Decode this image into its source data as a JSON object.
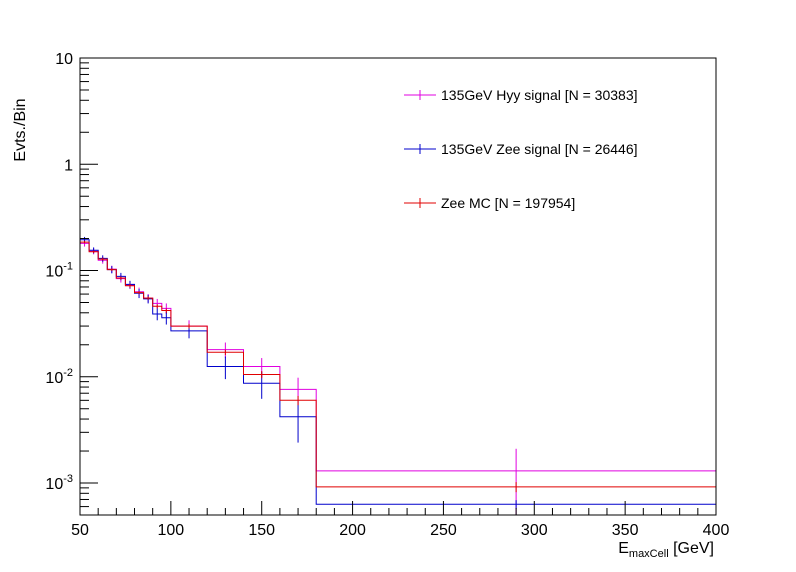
{
  "chart_data": {
    "type": "line",
    "ylabel": "Evts./Bin",
    "xlabel": {
      "main": "E",
      "sub": "maxCell",
      "unit": " [GeV]"
    },
    "xlim": [
      50,
      400
    ],
    "ylim": [
      0.0005,
      10
    ],
    "yscale": "log",
    "x_ticks": [
      "50",
      "100",
      "150",
      "200",
      "250",
      "300",
      "350",
      "400"
    ],
    "y_ticks": [
      {
        "base": "10",
        "exp": "-3",
        "value": 0.001
      },
      {
        "base": "10",
        "exp": "-2",
        "value": 0.01
      },
      {
        "base": "10",
        "exp": "-1",
        "value": 0.1
      },
      {
        "base": "1",
        "exp": "",
        "value": 1
      },
      {
        "base": "10",
        "exp": "",
        "value": 10
      }
    ],
    "legend_position": "top-right",
    "bin_edges": [
      50,
      55,
      60,
      65,
      70,
      75,
      80,
      85,
      90,
      95,
      100,
      120,
      140,
      160,
      180,
      400
    ],
    "series": [
      {
        "name": "135GeV Hyy signal [N = 30383]",
        "color": "#e000e0",
        "values": [
          0.18,
          0.152,
          0.125,
          0.103,
          0.084,
          0.073,
          0.063,
          0.055,
          0.049,
          0.044,
          0.03,
          0.018,
          0.0125,
          0.0076,
          0.0013
        ],
        "errors": [
          0.012,
          0.01,
          0.009,
          0.008,
          0.007,
          0.006,
          0.006,
          0.005,
          0.005,
          0.005,
          0.004,
          0.003,
          0.0025,
          0.0022,
          0.0008
        ]
      },
      {
        "name": "135GeV Zee signal [N = 26446]",
        "color": "#0000cc",
        "values": [
          0.195,
          0.155,
          0.13,
          0.102,
          0.088,
          0.074,
          0.061,
          0.054,
          0.039,
          0.036,
          0.027,
          0.0125,
          0.0087,
          0.0042,
          0.00063
        ],
        "errors": [
          0.012,
          0.01,
          0.009,
          0.008,
          0.007,
          0.006,
          0.006,
          0.005,
          0.005,
          0.005,
          0.004,
          0.003,
          0.0025,
          0.0018,
          6e-05
        ]
      },
      {
        "name": "Zee MC [N = 197954]",
        "color": "#e00000",
        "values": [
          0.185,
          0.15,
          0.128,
          0.102,
          0.085,
          0.072,
          0.062,
          0.055,
          0.046,
          0.042,
          0.03,
          0.017,
          0.0105,
          0.006,
          0.00092
        ],
        "errors": [
          0.005,
          0.004,
          0.004,
          0.003,
          0.003,
          0.003,
          0.002,
          0.002,
          0.002,
          0.002,
          0.0015,
          0.001,
          0.0008,
          0.0006,
          0.0001
        ]
      }
    ]
  }
}
